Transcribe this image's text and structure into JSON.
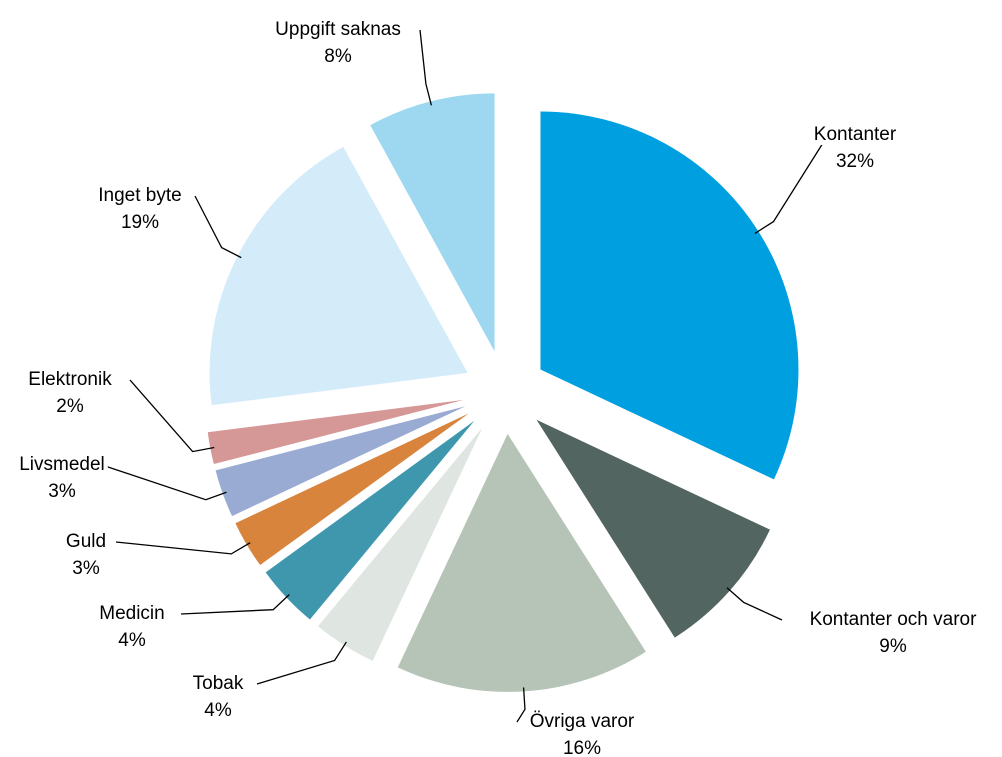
{
  "chart_data": {
    "type": "pie",
    "categories": [
      "Kontanter",
      "Kontanter och varor",
      "Övriga varor",
      "Tobak",
      "Medicin",
      "Guld",
      "Livsmedel",
      "Elektronik",
      "Inget byte",
      "Uppgift saknas"
    ],
    "values": [
      32,
      9,
      16,
      4,
      4,
      3,
      3,
      2,
      19,
      8
    ],
    "value_labels": [
      "32%",
      "9%",
      "16%",
      "4%",
      "4%",
      "3%",
      "3%",
      "2%",
      "19%",
      "8%"
    ],
    "colors": [
      "#009fdf",
      "#526560",
      "#b5c4b6",
      "#dfe6e1",
      "#3f97ae",
      "#d9843d",
      "#9aabd3",
      "#d69797",
      "#d4ecfa",
      "#9dd8f0"
    ]
  }
}
